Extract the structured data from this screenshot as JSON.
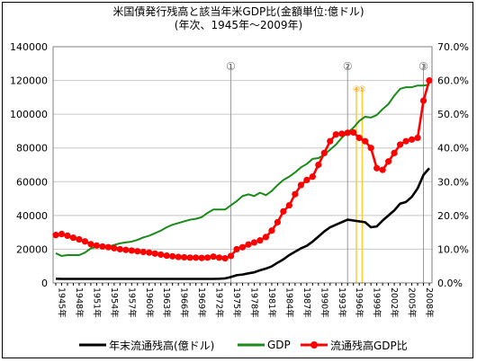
{
  "chart_data": {
    "type": "line",
    "title": "米国債発行残高と該当年米GDP比(金額単位:億ドル)",
    "subtitle": "(年次、1945年～2009年)",
    "x": [
      1945,
      1946,
      1947,
      1948,
      1949,
      1950,
      1951,
      1952,
      1953,
      1954,
      1955,
      1956,
      1957,
      1958,
      1959,
      1960,
      1961,
      1962,
      1963,
      1964,
      1965,
      1966,
      1967,
      1968,
      1969,
      1970,
      1971,
      1972,
      1973,
      1974,
      1975,
      1976,
      1977,
      1978,
      1979,
      1980,
      1981,
      1982,
      1983,
      1984,
      1985,
      1986,
      1987,
      1988,
      1989,
      1990,
      1991,
      1992,
      1993,
      1994,
      1995,
      1996,
      1997,
      1998,
      1999,
      2000,
      2001,
      2002,
      2003,
      2004,
      2005,
      2006,
      2007,
      2008,
      2009
    ],
    "x_tick_labels": [
      "1945年",
      "1948年",
      "1951年",
      "1954年",
      "1957年",
      "1960年",
      "1963年",
      "1966年",
      "1969年",
      "1972年",
      "1975年",
      "1978年",
      "1981年",
      "1984年",
      "1987年",
      "1990年",
      "1993年",
      "1996年",
      "1999年",
      "2002年",
      "2005年",
      "2008年"
    ],
    "y_left": {
      "range": [
        0,
        140000
      ],
      "ticks": [
        "0",
        "20000",
        "40000",
        "60000",
        "80000",
        "100000",
        "120000",
        "140000"
      ]
    },
    "y_right": {
      "range": [
        0,
        70
      ],
      "ticks": [
        "0.0%",
        "10.0%",
        "20.0%",
        "30.0%",
        "40.0%",
        "50.0%",
        "60.0%",
        "70.0%"
      ]
    },
    "grid": "horizontal",
    "legend_position": "bottom",
    "series": [
      {
        "name": "年末流通残高(億ドル)",
        "color": "#000000",
        "axis": "left",
        "values": [
          2500,
          2400,
          2400,
          2400,
          2400,
          2400,
          2400,
          2400,
          2400,
          2400,
          2400,
          2400,
          2400,
          2400,
          2400,
          2400,
          2400,
          2400,
          2400,
          2400,
          2400,
          2400,
          2400,
          2400,
          2400,
          2400,
          2400,
          2400,
          2500,
          2700,
          3500,
          4600,
          5000,
          5700,
          6300,
          7500,
          8500,
          9800,
          12000,
          14000,
          16500,
          18500,
          20500,
          22000,
          24500,
          27500,
          30500,
          33000,
          34500,
          36000,
          37500,
          37000,
          36500,
          36000,
          33000,
          33500,
          37000,
          40000,
          43000,
          47000,
          48000,
          51000,
          56000,
          64000,
          68000
        ]
      },
      {
        "name": "GDP",
        "color": "#1a8a1a",
        "axis": "left",
        "values": [
          17600,
          16000,
          16500,
          16500,
          16500,
          18000,
          20500,
          21500,
          21500,
          21500,
          22500,
          23500,
          24000,
          24500,
          25500,
          27000,
          28000,
          29500,
          31000,
          33000,
          34500,
          35500,
          36500,
          37500,
          38000,
          39000,
          41500,
          43500,
          43500,
          43500,
          46000,
          48500,
          51500,
          52500,
          51500,
          53500,
          52000,
          54500,
          58000,
          61000,
          63000,
          65500,
          68500,
          70500,
          73500,
          74000,
          76000,
          79000,
          82000,
          86000,
          89000,
          92000,
          96000,
          98500,
          98000,
          99500,
          103000,
          106000,
          111000,
          115000,
          116000,
          116000,
          117000,
          117000,
          117500
        ]
      },
      {
        "name": "流通残高GDP比",
        "color": "#ff0000",
        "axis": "right",
        "values": [
          14.2,
          14.5,
          14.0,
          13.4,
          12.9,
          12.3,
          11.5,
          11.1,
          10.8,
          10.6,
          10.3,
          10.0,
          9.8,
          9.6,
          9.4,
          9.2,
          9.0,
          8.7,
          8.4,
          8.1,
          7.9,
          7.7,
          7.6,
          7.5,
          7.5,
          7.4,
          7.5,
          7.8,
          7.5,
          7.3,
          8.0,
          10.0,
          10.6,
          11.4,
          12.0,
          12.6,
          13.6,
          15.5,
          18.0,
          21.2,
          23.0,
          26.3,
          29.0,
          30.5,
          31.5,
          35.0,
          38.5,
          42.0,
          44.0,
          44.2,
          44.5,
          44.6,
          43.0,
          42.0,
          40.0,
          34.0,
          33.5,
          36.0,
          38.5,
          41.0,
          42.0,
          42.5,
          43.0,
          54.0,
          60.0
        ]
      }
    ],
    "annotations": [
      {
        "label": "①",
        "year": 1975
      },
      {
        "label": "②",
        "year": 1995
      },
      {
        "label": "③",
        "year": 2008
      },
      {
        "label": "④",
        "year": 1996.5
      },
      {
        "label": "⑤",
        "year": 1997.5
      }
    ]
  }
}
